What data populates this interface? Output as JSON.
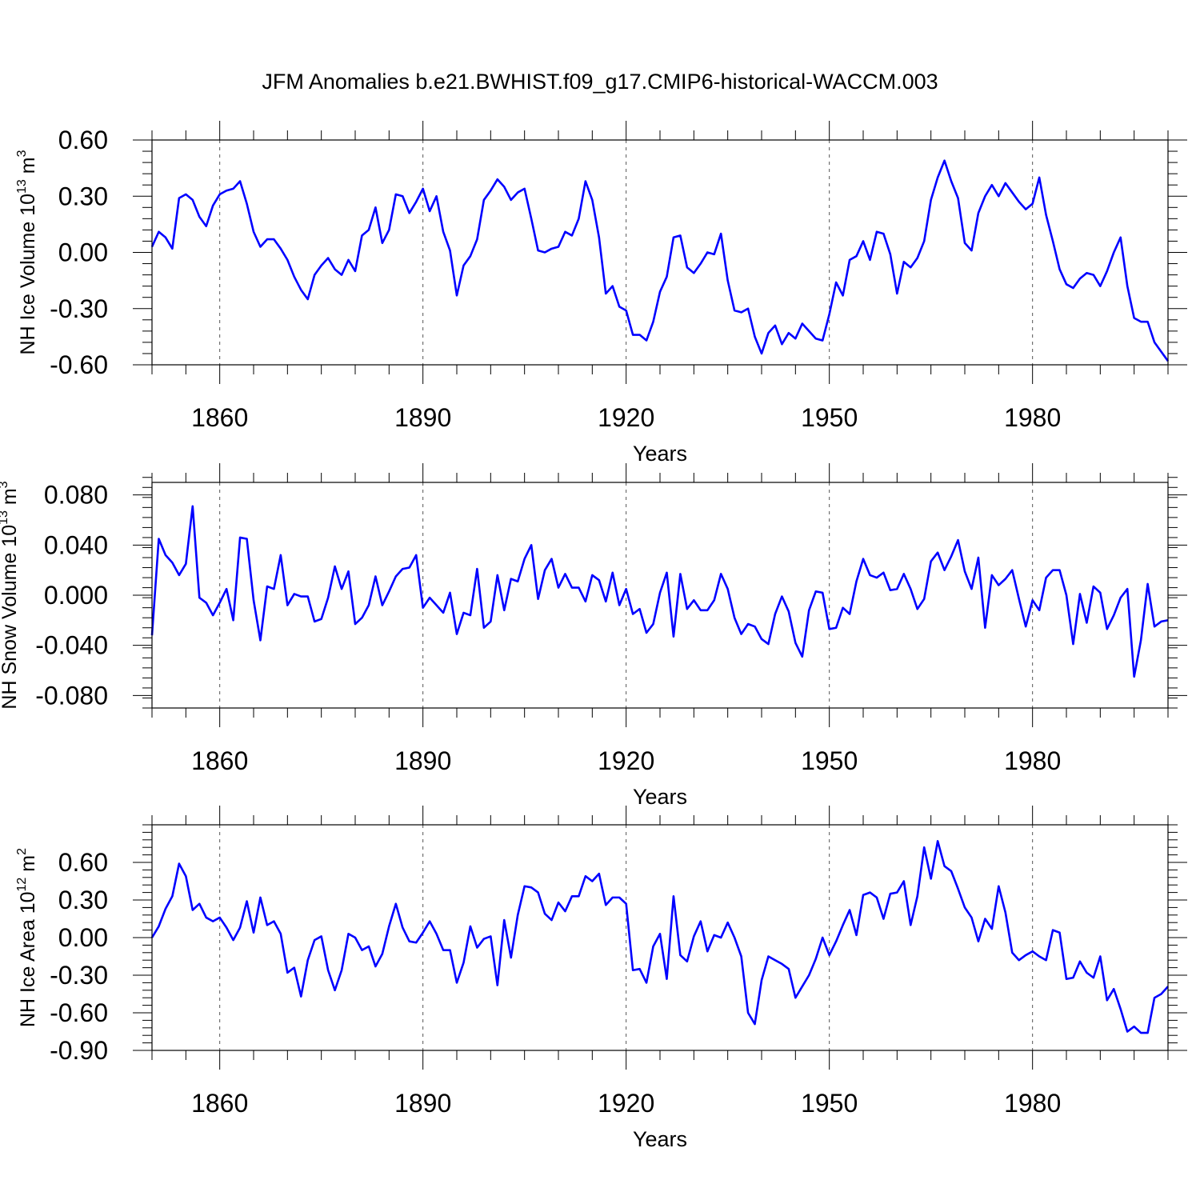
{
  "title": "JFM Anomalies b.e21.BWHIST.f09_g17.CMIP6-historical-WACCM.003",
  "colors": {
    "line": "#0000ff",
    "axis": "#000000",
    "grid": "#555555"
  },
  "chart_data": [
    {
      "type": "line",
      "ylabel": {
        "text": "NH Ice Volume 10",
        "sup": "13",
        "unit": " m",
        "unit_sup": "3"
      },
      "xlabel": "Years",
      "xlim": [
        1850,
        2000
      ],
      "ylim": [
        -0.6,
        0.6
      ],
      "xticks": [
        1860,
        1890,
        1920,
        1950,
        1980
      ],
      "xtick_labels": [
        "1860",
        "1890",
        "1920",
        "1950",
        "1980"
      ],
      "yticks": [
        -0.6,
        -0.3,
        0.0,
        0.3,
        0.6
      ],
      "ytick_labels": [
        "-0.60",
        "-0.30",
        "0.00",
        "0.30",
        "0.60"
      ],
      "grid": "vertical dashed at major x ticks",
      "x_start": 1850,
      "values": [
        0.03,
        0.11,
        0.08,
        0.02,
        0.29,
        0.31,
        0.28,
        0.19,
        0.14,
        0.25,
        0.31,
        0.33,
        0.34,
        0.38,
        0.26,
        0.11,
        0.03,
        0.07,
        0.07,
        0.02,
        -0.04,
        -0.13,
        -0.2,
        -0.25,
        -0.12,
        -0.07,
        -0.03,
        -0.09,
        -0.12,
        -0.04,
        -0.1,
        0.09,
        0.12,
        0.24,
        0.05,
        0.12,
        0.31,
        0.3,
        0.21,
        0.27,
        0.34,
        0.22,
        0.3,
        0.11,
        0.01,
        -0.23,
        -0.07,
        -0.02,
        0.07,
        0.28,
        0.33,
        0.39,
        0.35,
        0.28,
        0.32,
        0.34,
        0.18,
        0.01,
        0.0,
        0.02,
        0.03,
        0.11,
        0.09,
        0.18,
        0.38,
        0.28,
        0.08,
        -0.22,
        -0.18,
        -0.29,
        -0.31,
        -0.44,
        -0.44,
        -0.47,
        -0.37,
        -0.21,
        -0.13,
        0.08,
        0.09,
        -0.08,
        -0.11,
        -0.06,
        0.0,
        -0.01,
        0.1,
        -0.15,
        -0.31,
        -0.32,
        -0.3,
        -0.45,
        -0.54,
        -0.43,
        -0.39,
        -0.49,
        -0.43,
        -0.46,
        -0.38,
        -0.42,
        -0.46,
        -0.47,
        -0.33,
        -0.16,
        -0.23,
        -0.04,
        -0.02,
        0.06,
        -0.04,
        0.11,
        0.1,
        -0.01,
        -0.22,
        -0.05,
        -0.08,
        -0.03,
        0.06,
        0.28,
        0.4,
        0.49,
        0.38,
        0.29,
        0.05,
        0.01,
        0.21,
        0.3,
        0.36,
        0.3,
        0.37,
        0.32,
        0.27,
        0.23,
        0.26,
        0.4,
        0.2,
        0.06,
        -0.09,
        -0.17,
        -0.19,
        -0.14,
        -0.11,
        -0.12,
        -0.18,
        -0.1,
        0.0,
        0.08,
        -0.18,
        -0.35,
        -0.37,
        -0.37,
        -0.48,
        -0.53,
        -0.58
      ]
    },
    {
      "type": "line",
      "ylabel": {
        "text": "NH Snow Volume 10",
        "sup": "13",
        "unit": " m",
        "unit_sup": "3"
      },
      "xlabel": "Years",
      "xlim": [
        1850,
        2000
      ],
      "ylim": [
        -0.09,
        0.09
      ],
      "xticks": [
        1860,
        1890,
        1920,
        1950,
        1980
      ],
      "xtick_labels": [
        "1860",
        "1890",
        "1920",
        "1950",
        "1980"
      ],
      "yticks": [
        -0.08,
        -0.04,
        0.0,
        0.04,
        0.08
      ],
      "ytick_labels": [
        "-0.080",
        "-0.040",
        "0.000",
        "0.040",
        "0.080"
      ],
      "grid": "vertical dashed at major x ticks",
      "x_start": 1850,
      "values": [
        -0.032,
        0.045,
        0.032,
        0.026,
        0.016,
        0.025,
        0.071,
        -0.002,
        -0.006,
        -0.016,
        -0.006,
        0.005,
        -0.02,
        0.046,
        0.045,
        -0.004,
        -0.036,
        0.007,
        0.005,
        0.032,
        -0.008,
        0.001,
        -0.001,
        -0.001,
        -0.021,
        -0.019,
        -0.002,
        0.023,
        0.005,
        0.019,
        -0.023,
        -0.018,
        -0.008,
        0.015,
        -0.008,
        0.003,
        0.015,
        0.021,
        0.022,
        0.032,
        -0.01,
        -0.002,
        -0.008,
        -0.014,
        0.002,
        -0.031,
        -0.014,
        -0.016,
        0.021,
        -0.026,
        -0.021,
        0.016,
        -0.012,
        0.013,
        0.011,
        0.029,
        0.04,
        -0.003,
        0.02,
        0.029,
        0.006,
        0.017,
        0.006,
        0.006,
        -0.005,
        0.016,
        0.012,
        -0.005,
        0.018,
        -0.008,
        0.005,
        -0.015,
        -0.011,
        -0.03,
        -0.023,
        0.002,
        0.018,
        -0.033,
        0.017,
        -0.011,
        -0.004,
        -0.012,
        -0.012,
        -0.004,
        0.017,
        0.005,
        -0.018,
        -0.031,
        -0.023,
        -0.025,
        -0.035,
        -0.039,
        -0.015,
        -0.001,
        -0.013,
        -0.038,
        -0.049,
        -0.012,
        0.003,
        0.002,
        -0.027,
        -0.026,
        -0.01,
        -0.015,
        0.011,
        0.029,
        0.016,
        0.014,
        0.018,
        0.004,
        0.005,
        0.017,
        0.005,
        -0.011,
        -0.003,
        0.027,
        0.034,
        0.02,
        0.031,
        0.044,
        0.019,
        0.005,
        0.03,
        -0.026,
        0.016,
        0.008,
        0.013,
        0.02,
        -0.003,
        -0.025,
        -0.004,
        -0.012,
        0.014,
        0.02,
        0.02,
        0.0,
        -0.039,
        0.001,
        -0.022,
        0.007,
        0.002,
        -0.027,
        -0.016,
        -0.002,
        0.005,
        -0.065,
        -0.036,
        0.009,
        -0.025,
        -0.021,
        -0.02
      ]
    },
    {
      "type": "line",
      "ylabel": {
        "text": "NH Ice Area 10",
        "sup": "12",
        "unit": " m",
        "unit_sup": "2"
      },
      "xlabel": "Years",
      "xlim": [
        1850,
        2000
      ],
      "ylim": [
        -0.9,
        0.9
      ],
      "xticks": [
        1860,
        1890,
        1920,
        1950,
        1980
      ],
      "xtick_labels": [
        "1860",
        "1890",
        "1920",
        "1950",
        "1980"
      ],
      "yticks": [
        -0.9,
        -0.6,
        -0.3,
        0.0,
        0.3,
        0.6
      ],
      "ytick_labels": [
        "-0.90",
        "-0.60",
        "-0.30",
        "0.00",
        "0.30",
        "0.60"
      ],
      "grid": "vertical dashed at major x ticks",
      "x_start": 1850,
      "values": [
        0.0,
        0.09,
        0.23,
        0.33,
        0.59,
        0.49,
        0.22,
        0.27,
        0.16,
        0.13,
        0.16,
        0.08,
        -0.02,
        0.08,
        0.29,
        0.04,
        0.32,
        0.1,
        0.13,
        0.03,
        -0.28,
        -0.24,
        -0.47,
        -0.18,
        -0.02,
        0.01,
        -0.26,
        -0.42,
        -0.26,
        0.03,
        0.0,
        -0.1,
        -0.07,
        -0.23,
        -0.13,
        0.09,
        0.27,
        0.08,
        -0.03,
        -0.04,
        0.04,
        0.13,
        0.03,
        -0.1,
        -0.1,
        -0.36,
        -0.2,
        0.09,
        -0.08,
        -0.01,
        0.01,
        -0.38,
        0.14,
        -0.16,
        0.18,
        0.41,
        0.4,
        0.36,
        0.19,
        0.14,
        0.28,
        0.21,
        0.33,
        0.33,
        0.49,
        0.45,
        0.51,
        0.26,
        0.32,
        0.32,
        0.27,
        -0.26,
        -0.25,
        -0.36,
        -0.07,
        0.03,
        -0.33,
        0.33,
        -0.14,
        -0.19,
        0.01,
        0.13,
        -0.11,
        0.02,
        0.0,
        0.12,
        0.0,
        -0.15,
        -0.6,
        -0.69,
        -0.34,
        -0.15,
        -0.18,
        -0.21,
        -0.25,
        -0.48,
        -0.39,
        -0.3,
        -0.17,
        0.0,
        -0.14,
        -0.03,
        0.1,
        0.22,
        0.02,
        0.34,
        0.36,
        0.32,
        0.15,
        0.35,
        0.36,
        0.45,
        0.1,
        0.33,
        0.72,
        0.47,
        0.77,
        0.57,
        0.53,
        0.39,
        0.24,
        0.16,
        -0.03,
        0.15,
        0.07,
        0.41,
        0.2,
        -0.12,
        -0.18,
        -0.14,
        -0.11,
        -0.15,
        -0.18,
        0.06,
        0.04,
        -0.33,
        -0.32,
        -0.19,
        -0.28,
        -0.32,
        -0.15,
        -0.5,
        -0.41,
        -0.57,
        -0.75,
        -0.71,
        -0.76,
        -0.76,
        -0.48,
        -0.45,
        -0.39
      ]
    }
  ]
}
